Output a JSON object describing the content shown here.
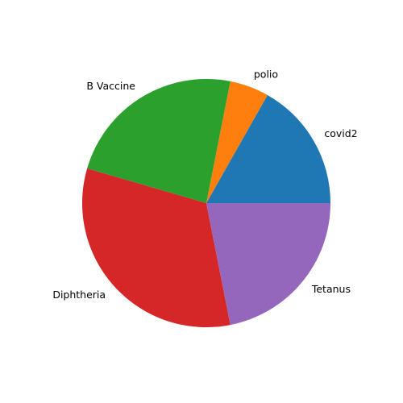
{
  "chart_data": {
    "type": "pie",
    "categories": [
      "covid2",
      "polio",
      "B Vaccine",
      "Diphtheria",
      "Tetanus"
    ],
    "values": [
      16.8,
      5.1,
      23.6,
      32.6,
      21.9
    ],
    "colors": [
      "#1f77b4",
      "#ff7f0e",
      "#2ca02c",
      "#d62728",
      "#9467bd"
    ],
    "start_angle_deg": 0,
    "direction": "counterclockwise",
    "legend": "none"
  }
}
